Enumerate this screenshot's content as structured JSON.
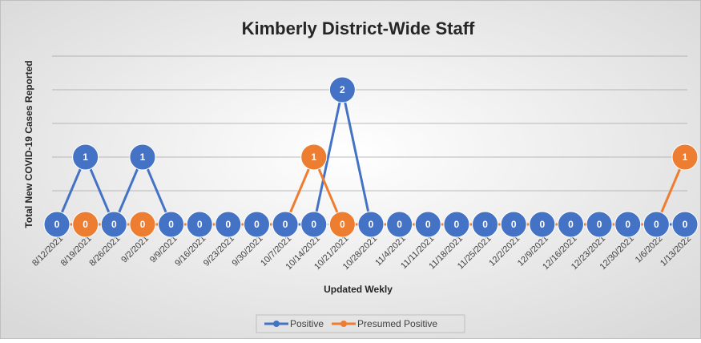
{
  "chart_data": {
    "type": "line",
    "title": "Kimberly District-Wide Staff",
    "x_label": "Updated Wekly",
    "y_label": "Total New COVID-19 Cases Reported",
    "categories": [
      "8/12/2021",
      "8/19/2021",
      "8/26/2021",
      "9/2/2021",
      "9/9/2021",
      "9/16/2021",
      "9/23/2021",
      "9/30/2021",
      "10/7/2021",
      "10/14/2021",
      "10/21/2021",
      "10/28/2021",
      "11/4/2021",
      "11/11/2021",
      "11/18/2021",
      "11/25/2021",
      "12/2/2021",
      "12/9/2021",
      "12/16/2021",
      "12/23/2021",
      "12/30/2021",
      "1/6/2022",
      "1/13/2022"
    ],
    "series": [
      {
        "name": "Positive",
        "color": "#4472c4",
        "values": [
          0,
          1,
          0,
          1,
          0,
          0,
          0,
          0,
          0,
          0,
          2,
          0,
          0,
          0,
          0,
          0,
          0,
          0,
          0,
          0,
          0,
          0,
          0
        ]
      },
      {
        "name": "Presumed Positive",
        "color": "#ed7d31",
        "values": [
          0,
          0,
          0,
          0,
          0,
          0,
          0,
          0,
          0,
          1,
          0,
          0,
          0,
          0,
          0,
          0,
          0,
          0,
          0,
          0,
          0,
          0,
          1
        ]
      }
    ],
    "ylim": [
      0,
      2.5
    ],
    "yticks": [
      0,
      0.5,
      1,
      1.5,
      2,
      2.5
    ],
    "grid": true,
    "legend": "bottom"
  }
}
